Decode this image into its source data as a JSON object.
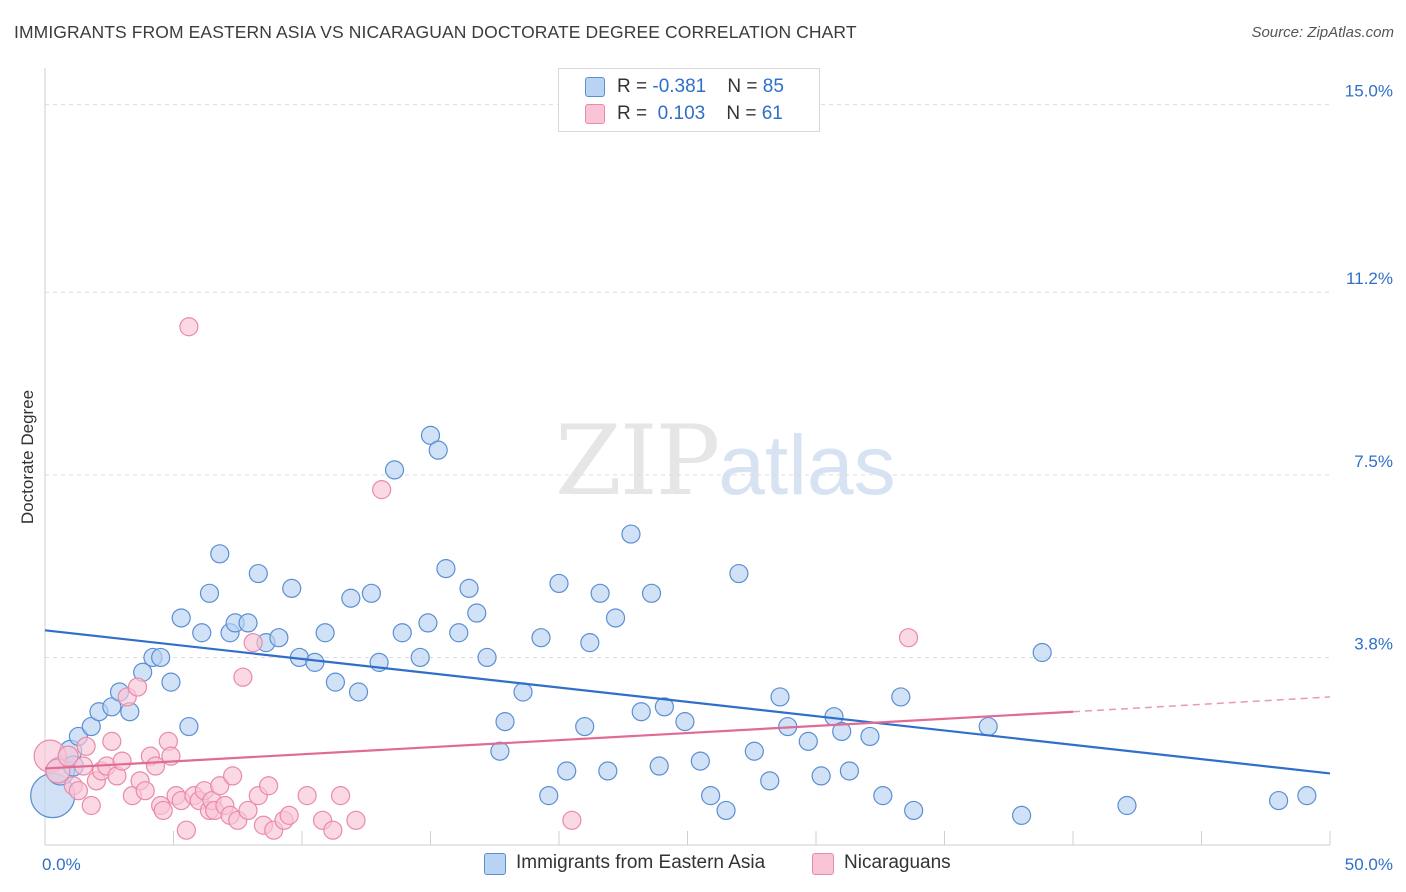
{
  "title": "IMMIGRANTS FROM EASTERN ASIA VS NICARAGUAN DOCTORATE DEGREE CORRELATION CHART",
  "source": "Source: ZipAtlas.com",
  "watermark": {
    "zip": "ZIP",
    "atlas": "atlas"
  },
  "colors": {
    "blue_fill": "#b9d3f3",
    "blue_stroke": "#5b8fd3",
    "blue_line": "#2f6fc9",
    "pink_fill": "#f9c4d5",
    "pink_stroke": "#e98aab",
    "pink_line": "#e06b97",
    "axis_text": "#2f6fc9",
    "grid": "#dddddd"
  },
  "legend": {
    "rows": [
      {
        "r_label": "R = ",
        "r_value": "-0.381",
        "n_label": "N = ",
        "n_value": "85"
      },
      {
        "r_label": "R = ",
        "r_value": " 0.103",
        "n_label": "N = ",
        "n_value": "61"
      }
    ]
  },
  "chart_data": {
    "type": "scatter",
    "title": "IMMIGRANTS FROM EASTERN ASIA VS NICARAGUAN DOCTORATE DEGREE CORRELATION CHART",
    "ylabel": "Doctorate Degree",
    "xlabel": "",
    "xlim": [
      0,
      50
    ],
    "ylim": [
      0,
      15.5
    ],
    "x_tick_labels": [
      {
        "value": 0,
        "label": "0.0%"
      },
      {
        "value": 50,
        "label": "50.0%"
      }
    ],
    "y_tick_labels": [
      {
        "value": 3.8,
        "label": "3.8%"
      },
      {
        "value": 7.5,
        "label": "7.5%"
      },
      {
        "value": 11.2,
        "label": "11.2%"
      },
      {
        "value": 15.0,
        "label": "15.0%"
      }
    ],
    "grid": true,
    "legend_position": "bottom",
    "series": [
      {
        "name": "Immigrants from Eastern Asia",
        "color": "blue",
        "trend": {
          "x": [
            0,
            50
          ],
          "y": [
            4.35,
            1.45
          ]
        },
        "points": [
          [
            0.3,
            1.0,
            22
          ],
          [
            0.6,
            1.5,
            14
          ],
          [
            1.0,
            1.9,
            11
          ],
          [
            1.1,
            1.6,
            10
          ],
          [
            1.3,
            2.2,
            9
          ],
          [
            1.8,
            2.4,
            9
          ],
          [
            2.1,
            2.7,
            9
          ],
          [
            2.6,
            2.8,
            9
          ],
          [
            2.9,
            3.1,
            9
          ],
          [
            3.3,
            2.7,
            9
          ],
          [
            3.8,
            3.5,
            9
          ],
          [
            4.2,
            3.8,
            9
          ],
          [
            4.5,
            3.8,
            9
          ],
          [
            4.9,
            3.3,
            9
          ],
          [
            5.3,
            4.6,
            9
          ],
          [
            5.6,
            2.4,
            9
          ],
          [
            6.1,
            4.3,
            9
          ],
          [
            6.4,
            5.1,
            9
          ],
          [
            6.8,
            5.9,
            9
          ],
          [
            7.2,
            4.3,
            9
          ],
          [
            7.4,
            4.5,
            9
          ],
          [
            7.9,
            4.5,
            9
          ],
          [
            8.3,
            5.5,
            9
          ],
          [
            8.6,
            4.1,
            9
          ],
          [
            9.1,
            4.2,
            9
          ],
          [
            9.6,
            5.2,
            9
          ],
          [
            9.9,
            3.8,
            9
          ],
          [
            10.5,
            3.7,
            9
          ],
          [
            10.9,
            4.3,
            9
          ],
          [
            11.3,
            3.3,
            9
          ],
          [
            11.9,
            5.0,
            9
          ],
          [
            12.2,
            3.1,
            9
          ],
          [
            12.7,
            5.1,
            9
          ],
          [
            13.0,
            3.7,
            9
          ],
          [
            13.6,
            7.6,
            9
          ],
          [
            13.9,
            4.3,
            9
          ],
          [
            14.6,
            3.8,
            9
          ],
          [
            14.9,
            4.5,
            9
          ],
          [
            15.0,
            8.3,
            9
          ],
          [
            15.3,
            8.0,
            9
          ],
          [
            15.6,
            5.6,
            9
          ],
          [
            16.1,
            4.3,
            9
          ],
          [
            16.5,
            5.2,
            9
          ],
          [
            16.8,
            4.7,
            9
          ],
          [
            17.2,
            3.8,
            9
          ],
          [
            17.7,
            1.9,
            9
          ],
          [
            17.9,
            2.5,
            9
          ],
          [
            18.6,
            3.1,
            9
          ],
          [
            19.3,
            4.2,
            9
          ],
          [
            19.6,
            1.0,
            9
          ],
          [
            20.0,
            5.3,
            9
          ],
          [
            20.3,
            1.5,
            9
          ],
          [
            21.0,
            2.4,
            9
          ],
          [
            21.2,
            4.1,
            9
          ],
          [
            21.6,
            5.1,
            9
          ],
          [
            21.9,
            1.5,
            9
          ],
          [
            22.2,
            4.6,
            9
          ],
          [
            22.8,
            6.3,
            9
          ],
          [
            23.2,
            2.7,
            9
          ],
          [
            23.6,
            5.1,
            9
          ],
          [
            23.9,
            1.6,
            9
          ],
          [
            24.1,
            2.8,
            9
          ],
          [
            24.9,
            2.5,
            9
          ],
          [
            25.5,
            1.7,
            9
          ],
          [
            25.9,
            1.0,
            9
          ],
          [
            26.5,
            0.7,
            9
          ],
          [
            27.0,
            5.5,
            9
          ],
          [
            27.6,
            1.9,
            9
          ],
          [
            28.2,
            1.3,
            9
          ],
          [
            28.6,
            3.0,
            9
          ],
          [
            28.9,
            2.4,
            9
          ],
          [
            29.7,
            2.1,
            9
          ],
          [
            30.2,
            1.4,
            9
          ],
          [
            30.7,
            2.6,
            9
          ],
          [
            31.0,
            2.3,
            9
          ],
          [
            31.3,
            1.5,
            9
          ],
          [
            32.1,
            2.2,
            9
          ],
          [
            32.6,
            1.0,
            9
          ],
          [
            33.3,
            3.0,
            9
          ],
          [
            33.8,
            0.7,
            9
          ],
          [
            36.7,
            2.4,
            9
          ],
          [
            38.0,
            0.6,
            9
          ],
          [
            38.8,
            3.9,
            9
          ],
          [
            42.1,
            0.8,
            9
          ],
          [
            48.0,
            0.9,
            9
          ],
          [
            49.1,
            1.0,
            9
          ]
        ]
      },
      {
        "name": "Nicaraguans",
        "color": "pink",
        "trend": {
          "x": [
            0,
            40
          ],
          "y": [
            1.55,
            2.7
          ]
        },
        "trend_dashed": {
          "x": [
            40,
            50
          ],
          "y": [
            2.7,
            3.0
          ]
        },
        "points": [
          [
            0.2,
            1.8,
            16
          ],
          [
            0.5,
            1.5,
            12
          ],
          [
            0.9,
            1.8,
            10
          ],
          [
            1.1,
            1.2,
            9
          ],
          [
            1.3,
            1.1,
            9
          ],
          [
            1.5,
            1.6,
            9
          ],
          [
            1.6,
            2.0,
            9
          ],
          [
            1.8,
            0.8,
            9
          ],
          [
            2.0,
            1.3,
            9
          ],
          [
            2.2,
            1.5,
            9
          ],
          [
            2.4,
            1.6,
            9
          ],
          [
            2.6,
            2.1,
            9
          ],
          [
            2.8,
            1.4,
            9
          ],
          [
            3.0,
            1.7,
            9
          ],
          [
            3.2,
            3.0,
            9
          ],
          [
            3.4,
            1.0,
            9
          ],
          [
            3.6,
            3.2,
            9
          ],
          [
            3.7,
            1.3,
            9
          ],
          [
            3.9,
            1.1,
            9
          ],
          [
            4.1,
            1.8,
            9
          ],
          [
            4.3,
            1.6,
            9
          ],
          [
            4.5,
            0.8,
            9
          ],
          [
            4.6,
            0.7,
            9
          ],
          [
            4.8,
            2.1,
            9
          ],
          [
            4.9,
            1.8,
            9
          ],
          [
            5.1,
            1.0,
            9
          ],
          [
            5.3,
            0.9,
            9
          ],
          [
            5.5,
            0.3,
            9
          ],
          [
            5.6,
            10.5,
            9
          ],
          [
            5.8,
            1.0,
            9
          ],
          [
            6.0,
            0.9,
            9
          ],
          [
            6.2,
            1.1,
            9
          ],
          [
            6.4,
            0.7,
            9
          ],
          [
            6.5,
            0.9,
            9
          ],
          [
            6.6,
            0.7,
            9
          ],
          [
            6.8,
            1.2,
            9
          ],
          [
            7.0,
            0.8,
            9
          ],
          [
            7.2,
            0.6,
            9
          ],
          [
            7.3,
            1.4,
            9
          ],
          [
            7.5,
            0.5,
            9
          ],
          [
            7.7,
            3.4,
            9
          ],
          [
            7.9,
            0.7,
            9
          ],
          [
            8.1,
            4.1,
            9
          ],
          [
            8.3,
            1.0,
            9
          ],
          [
            8.5,
            0.4,
            9
          ],
          [
            8.7,
            1.2,
            9
          ],
          [
            8.9,
            0.3,
            9
          ],
          [
            9.3,
            0.5,
            9
          ],
          [
            9.5,
            0.6,
            9
          ],
          [
            10.2,
            1.0,
            9
          ],
          [
            10.8,
            0.5,
            9
          ],
          [
            11.2,
            0.3,
            9
          ],
          [
            11.5,
            1.0,
            9
          ],
          [
            12.1,
            0.5,
            9
          ],
          [
            13.1,
            7.2,
            9
          ],
          [
            20.5,
            0.5,
            9
          ],
          [
            33.6,
            4.2,
            9
          ]
        ]
      }
    ]
  }
}
